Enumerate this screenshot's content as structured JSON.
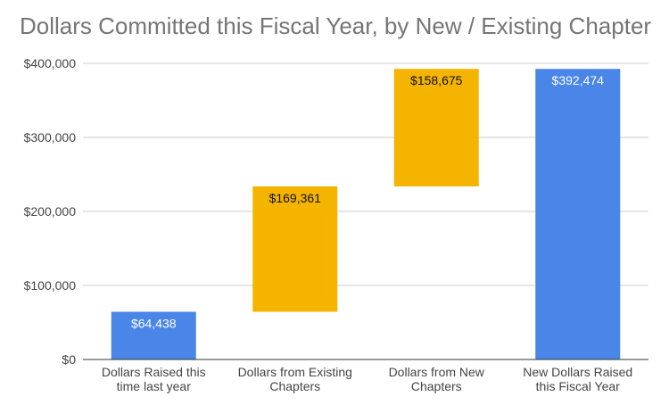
{
  "chart_data": {
    "type": "bar",
    "subtype": "waterfall",
    "title": "Dollars Committed this Fiscal Year, by New / Existing Chapter",
    "xlabel": "",
    "ylabel": "",
    "ylim": [
      0,
      400000
    ],
    "yticks": [
      0,
      100000,
      200000,
      300000,
      400000
    ],
    "ytick_labels": [
      "$0",
      "$100,000",
      "$200,000",
      "$300,000",
      "$400,000"
    ],
    "grid": true,
    "legend": "none",
    "categories": [
      "Dollars Raised this time last year",
      "Dollars from Existing Chapters",
      "Dollars from New Chapters",
      "New Dollars Raised this Fiscal Year"
    ],
    "category_lines": [
      [
        "Dollars Raised this",
        "time last year"
      ],
      [
        "Dollars from Existing",
        "Chapters"
      ],
      [
        "Dollars from New",
        "Chapters"
      ],
      [
        "New Dollars Raised",
        "this Fiscal Year"
      ]
    ],
    "bars": [
      {
        "kind": "total",
        "start": 0,
        "value": 64438,
        "label": "$64,438"
      },
      {
        "kind": "increase",
        "start": 64438,
        "value": 169361,
        "label": "$169,361"
      },
      {
        "kind": "increase",
        "start": 233799,
        "value": 158675,
        "label": "$158,675"
      },
      {
        "kind": "total",
        "start": 0,
        "value": 392474,
        "label": "$392,474"
      }
    ],
    "colors": {
      "total": "#4a86e8",
      "increase": "#f4b400",
      "total_label": "#ffffff",
      "increase_label": "#111111",
      "grid": "#cccccc",
      "axis": "#333333"
    }
  }
}
